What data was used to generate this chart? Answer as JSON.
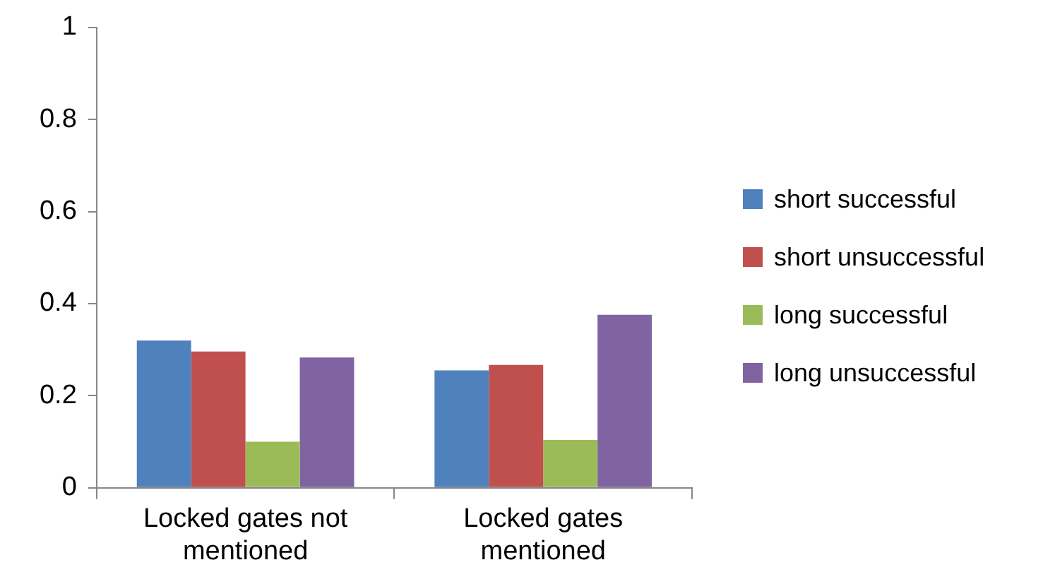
{
  "chart_data": {
    "type": "bar",
    "categories": [
      "Locked gates not mentioned",
      "Locked gates mentioned"
    ],
    "series": [
      {
        "name": "short successful",
        "color": "#4f81bd",
        "values": [
          0.32,
          0.255
        ]
      },
      {
        "name": "short unsuccessful",
        "color": "#c0504d",
        "values": [
          0.296,
          0.267
        ]
      },
      {
        "name": "long successful",
        "color": "#9bbb59",
        "values": [
          0.1,
          0.104
        ]
      },
      {
        "name": "long unsuccessful",
        "color": "#8064a2",
        "values": [
          0.283,
          0.376
        ]
      }
    ],
    "ylim": [
      0,
      1
    ],
    "yticks": [
      0,
      0.2,
      0.4,
      0.6,
      0.8,
      1
    ],
    "grid": false,
    "legend": "right"
  }
}
